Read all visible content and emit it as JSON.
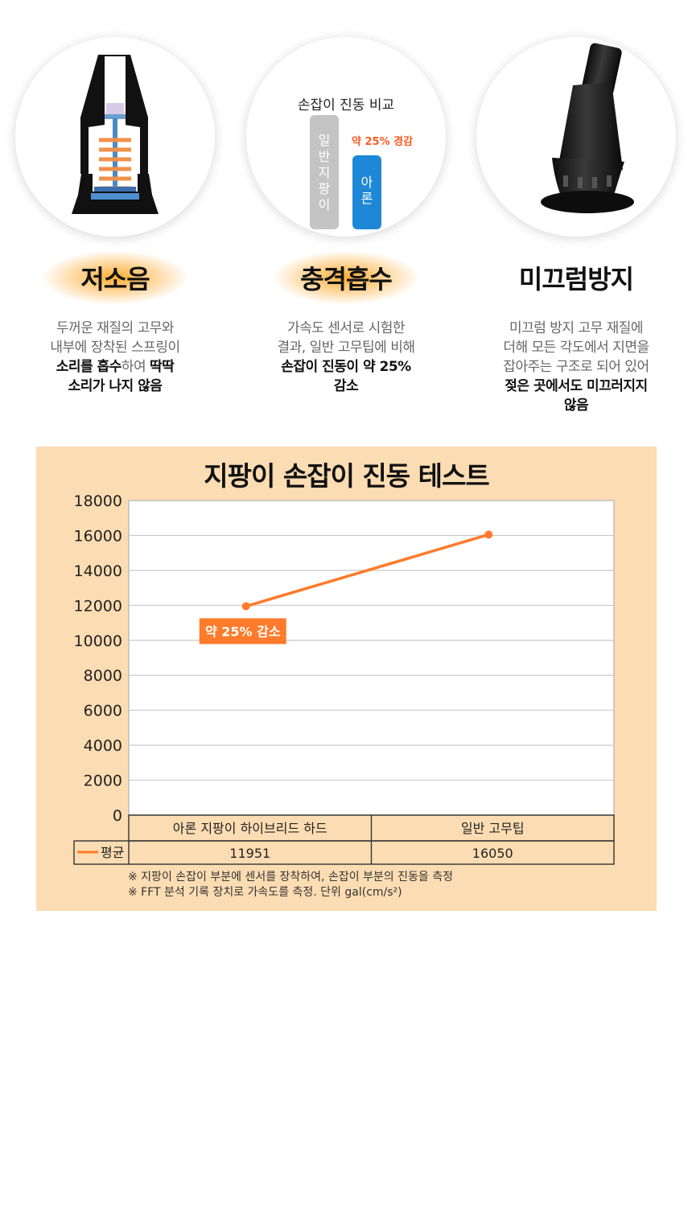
{
  "features": [
    {
      "title": "저소음",
      "desc_parts": [
        {
          "text": "두꺼운 재질의 고무와",
          "bold": false,
          "br": true
        },
        {
          "text": "내부에 장착된 스프링이",
          "bold": false,
          "br": true
        },
        {
          "text": "소리를 흡수",
          "bold": true,
          "br": false
        },
        {
          "text": "하여 ",
          "bold": false,
          "br": false
        },
        {
          "text": "딱딱",
          "bold": true,
          "br": true
        },
        {
          "text": "소리가 나지 않음",
          "bold": true,
          "br": false
        }
      ]
    },
    {
      "title": "충격흡수",
      "desc_parts": [
        {
          "text": "가속도 센서로 시험한",
          "bold": false,
          "br": true
        },
        {
          "text": "결과, 일반 고무팁에 비해",
          "bold": false,
          "br": true
        },
        {
          "text": "손잡이 진동이 약 25%",
          "bold": true,
          "br": true
        },
        {
          "text": "감소",
          "bold": true,
          "br": false
        }
      ]
    },
    {
      "title": "미끄럼방지",
      "desc_parts": [
        {
          "text": "미끄럼 방지 고무 재질에",
          "bold": false,
          "br": true
        },
        {
          "text": "더해 모든 각도에서 지면을",
          "bold": false,
          "br": true
        },
        {
          "text": "잡아주는 구조로 되어 있어",
          "bold": false,
          "br": true
        },
        {
          "text": "젖은 곳에서도 미끄러지지",
          "bold": true,
          "br": true
        },
        {
          "text": "않음",
          "bold": true,
          "br": false
        }
      ]
    }
  ],
  "compare": {
    "title": "손잡이 진동 비교",
    "reduction_note": "약 25% 경감",
    "gray_chars": [
      "일",
      "반",
      "지",
      "팡",
      "이"
    ],
    "blue_chars": [
      "아",
      "론"
    ]
  },
  "chart_data": {
    "type": "line",
    "title": "지팡이 손잡이 진동 테스트",
    "categories": [
      "아론 지팡이 하이브리드 하드",
      "일반 고무팁"
    ],
    "series": [
      {
        "name": "평균",
        "values": [
          11951,
          16050
        ]
      }
    ],
    "table_values": [
      "11951",
      "16050"
    ],
    "yticks": [
      "0",
      "2000",
      "4000",
      "6000",
      "8000",
      "10000",
      "12000",
      "14000",
      "16000",
      "18000"
    ],
    "ylim": [
      0,
      18000
    ],
    "annotation": "약 25% 감소",
    "series_color": "#ff7a2a",
    "grid": true,
    "legend": "table-left",
    "footnotes": [
      "※ 지팡이 손잡이 부분에 센서를 장착하여, 손잡이 부분의 진동을 측정",
      "※ FFT 분석 기록 장치로 가속도를 측정. 단위 gal(cm/s²)"
    ]
  }
}
